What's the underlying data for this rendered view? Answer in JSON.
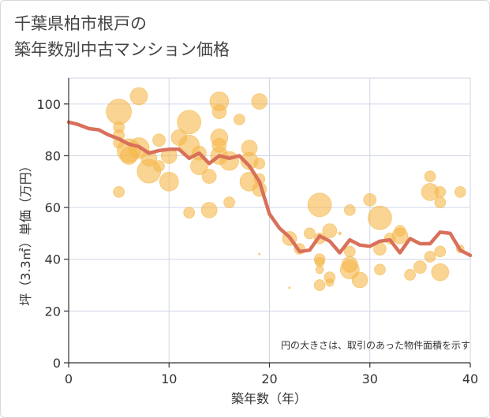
{
  "title_line1": "千葉県柏市根戸の",
  "title_line2": "築年数別中古マンション価格",
  "chart_data": {
    "type": "scatter",
    "xlabel": "築年数（年）",
    "ylabel": "坪（3.3㎡）単価（万円）",
    "xlim": [
      0,
      40
    ],
    "ylim": [
      0,
      110
    ],
    "xticks": [
      0,
      10,
      20,
      30,
      40
    ],
    "yticks": [
      0,
      20,
      40,
      60,
      80,
      100
    ],
    "grid": true,
    "note": "円の大きさは、取引のあった物件面積を示す",
    "colors": {
      "bubble": "#f5b84a",
      "line": "#d9705a",
      "grid": "#cfd6e6",
      "axis": "#333333"
    },
    "bubbles": [
      {
        "x": 5,
        "y": 97,
        "size": 16
      },
      {
        "x": 7,
        "y": 103,
        "size": 11
      },
      {
        "x": 5,
        "y": 91,
        "size": 7
      },
      {
        "x": 5,
        "y": 88,
        "size": 7
      },
      {
        "x": 5,
        "y": 85,
        "size": 7
      },
      {
        "x": 6,
        "y": 82,
        "size": 15
      },
      {
        "x": 6,
        "y": 80,
        "size": 11
      },
      {
        "x": 7,
        "y": 83,
        "size": 13
      },
      {
        "x": 8,
        "y": 79,
        "size": 10
      },
      {
        "x": 8,
        "y": 74,
        "size": 15
      },
      {
        "x": 9,
        "y": 76,
        "size": 7
      },
      {
        "x": 9,
        "y": 86,
        "size": 8
      },
      {
        "x": 10,
        "y": 80,
        "size": 10
      },
      {
        "x": 10,
        "y": 70,
        "size": 12
      },
      {
        "x": 5,
        "y": 66,
        "size": 7
      },
      {
        "x": 11,
        "y": 87,
        "size": 10
      },
      {
        "x": 12,
        "y": 93,
        "size": 15
      },
      {
        "x": 12,
        "y": 84,
        "size": 13
      },
      {
        "x": 12,
        "y": 58,
        "size": 7
      },
      {
        "x": 13,
        "y": 81,
        "size": 9
      },
      {
        "x": 13,
        "y": 76,
        "size": 11
      },
      {
        "x": 14,
        "y": 72,
        "size": 9
      },
      {
        "x": 14,
        "y": 59,
        "size": 10
      },
      {
        "x": 15,
        "y": 101,
        "size": 12
      },
      {
        "x": 15,
        "y": 97,
        "size": 9
      },
      {
        "x": 15,
        "y": 87,
        "size": 11
      },
      {
        "x": 15,
        "y": 84,
        "size": 9
      },
      {
        "x": 15,
        "y": 80,
        "size": 11
      },
      {
        "x": 16,
        "y": 78,
        "size": 12
      },
      {
        "x": 16,
        "y": 62,
        "size": 7
      },
      {
        "x": 17,
        "y": 94,
        "size": 7
      },
      {
        "x": 18,
        "y": 83,
        "size": 10
      },
      {
        "x": 18,
        "y": 78,
        "size": 11
      },
      {
        "x": 18,
        "y": 70,
        "size": 12
      },
      {
        "x": 19,
        "y": 101,
        "size": 10
      },
      {
        "x": 19,
        "y": 77,
        "size": 7
      },
      {
        "x": 19,
        "y": 71,
        "size": 7
      },
      {
        "x": 19,
        "y": 67,
        "size": 9
      },
      {
        "x": 19,
        "y": 42,
        "size": 1.2
      },
      {
        "x": 22,
        "y": 48,
        "size": 9
      },
      {
        "x": 22,
        "y": 29,
        "size": 1.2
      },
      {
        "x": 23,
        "y": 44,
        "size": 7
      },
      {
        "x": 24,
        "y": 50,
        "size": 7
      },
      {
        "x": 25,
        "y": 61,
        "size": 15
      },
      {
        "x": 25,
        "y": 48,
        "size": 7
      },
      {
        "x": 25,
        "y": 40,
        "size": 7
      },
      {
        "x": 25,
        "y": 39,
        "size": 6
      },
      {
        "x": 25,
        "y": 36,
        "size": 5
      },
      {
        "x": 25,
        "y": 30,
        "size": 7
      },
      {
        "x": 26,
        "y": 51,
        "size": 9
      },
      {
        "x": 26,
        "y": 33,
        "size": 7
      },
      {
        "x": 26,
        "y": 31,
        "size": 5
      },
      {
        "x": 27,
        "y": 50,
        "size": 2
      },
      {
        "x": 28,
        "y": 59,
        "size": 7
      },
      {
        "x": 28,
        "y": 43,
        "size": 7
      },
      {
        "x": 28,
        "y": 38,
        "size": 10
      },
      {
        "x": 28,
        "y": 36,
        "size": 12
      },
      {
        "x": 29,
        "y": 32,
        "size": 10
      },
      {
        "x": 30,
        "y": 63,
        "size": 8
      },
      {
        "x": 31,
        "y": 56,
        "size": 15
      },
      {
        "x": 31,
        "y": 44,
        "size": 8
      },
      {
        "x": 31,
        "y": 36,
        "size": 7
      },
      {
        "x": 33,
        "y": 51,
        "size": 7
      },
      {
        "x": 33,
        "y": 49,
        "size": 10
      },
      {
        "x": 34,
        "y": 34,
        "size": 7
      },
      {
        "x": 35,
        "y": 37,
        "size": 8
      },
      {
        "x": 36,
        "y": 72,
        "size": 7
      },
      {
        "x": 36,
        "y": 66,
        "size": 11
      },
      {
        "x": 36,
        "y": 41,
        "size": 7
      },
      {
        "x": 37,
        "y": 66,
        "size": 7
      },
      {
        "x": 37,
        "y": 62,
        "size": 7
      },
      {
        "x": 37,
        "y": 35,
        "size": 11
      },
      {
        "x": 37,
        "y": 43,
        "size": 7
      },
      {
        "x": 39,
        "y": 66,
        "size": 7
      },
      {
        "x": 39,
        "y": 44,
        "size": 5
      },
      {
        "x": 32,
        "y": 48,
        "size": 7
      }
    ],
    "line": [
      {
        "x": 0,
        "y": 93
      },
      {
        "x": 1,
        "y": 92
      },
      {
        "x": 2,
        "y": 90.5
      },
      {
        "x": 3,
        "y": 90
      },
      {
        "x": 4,
        "y": 88
      },
      {
        "x": 5,
        "y": 86.5
      },
      {
        "x": 6,
        "y": 84.5
      },
      {
        "x": 7,
        "y": 83.5
      },
      {
        "x": 8,
        "y": 81
      },
      {
        "x": 9,
        "y": 82
      },
      {
        "x": 10,
        "y": 82.5
      },
      {
        "x": 11,
        "y": 82.5
      },
      {
        "x": 12,
        "y": 79
      },
      {
        "x": 13,
        "y": 81
      },
      {
        "x": 14,
        "y": 77
      },
      {
        "x": 15,
        "y": 80
      },
      {
        "x": 16,
        "y": 79
      },
      {
        "x": 17,
        "y": 80
      },
      {
        "x": 18,
        "y": 76
      },
      {
        "x": 19,
        "y": 70
      },
      {
        "x": 20,
        "y": 57.5
      },
      {
        "x": 21,
        "y": 52
      },
      {
        "x": 22,
        "y": 48.5
      },
      {
        "x": 23,
        "y": 43
      },
      {
        "x": 24,
        "y": 43.5
      },
      {
        "x": 25,
        "y": 49
      },
      {
        "x": 26,
        "y": 47
      },
      {
        "x": 27,
        "y": 42.5
      },
      {
        "x": 28,
        "y": 47.5
      },
      {
        "x": 29,
        "y": 45.5
      },
      {
        "x": 30,
        "y": 45
      },
      {
        "x": 31,
        "y": 47
      },
      {
        "x": 32,
        "y": 47.5
      },
      {
        "x": 33,
        "y": 42.5
      },
      {
        "x": 34,
        "y": 48
      },
      {
        "x": 35,
        "y": 46
      },
      {
        "x": 36,
        "y": 46
      },
      {
        "x": 37,
        "y": 50.5
      },
      {
        "x": 38,
        "y": 50
      },
      {
        "x": 39,
        "y": 43.5
      },
      {
        "x": 40,
        "y": 41.5
      }
    ]
  }
}
